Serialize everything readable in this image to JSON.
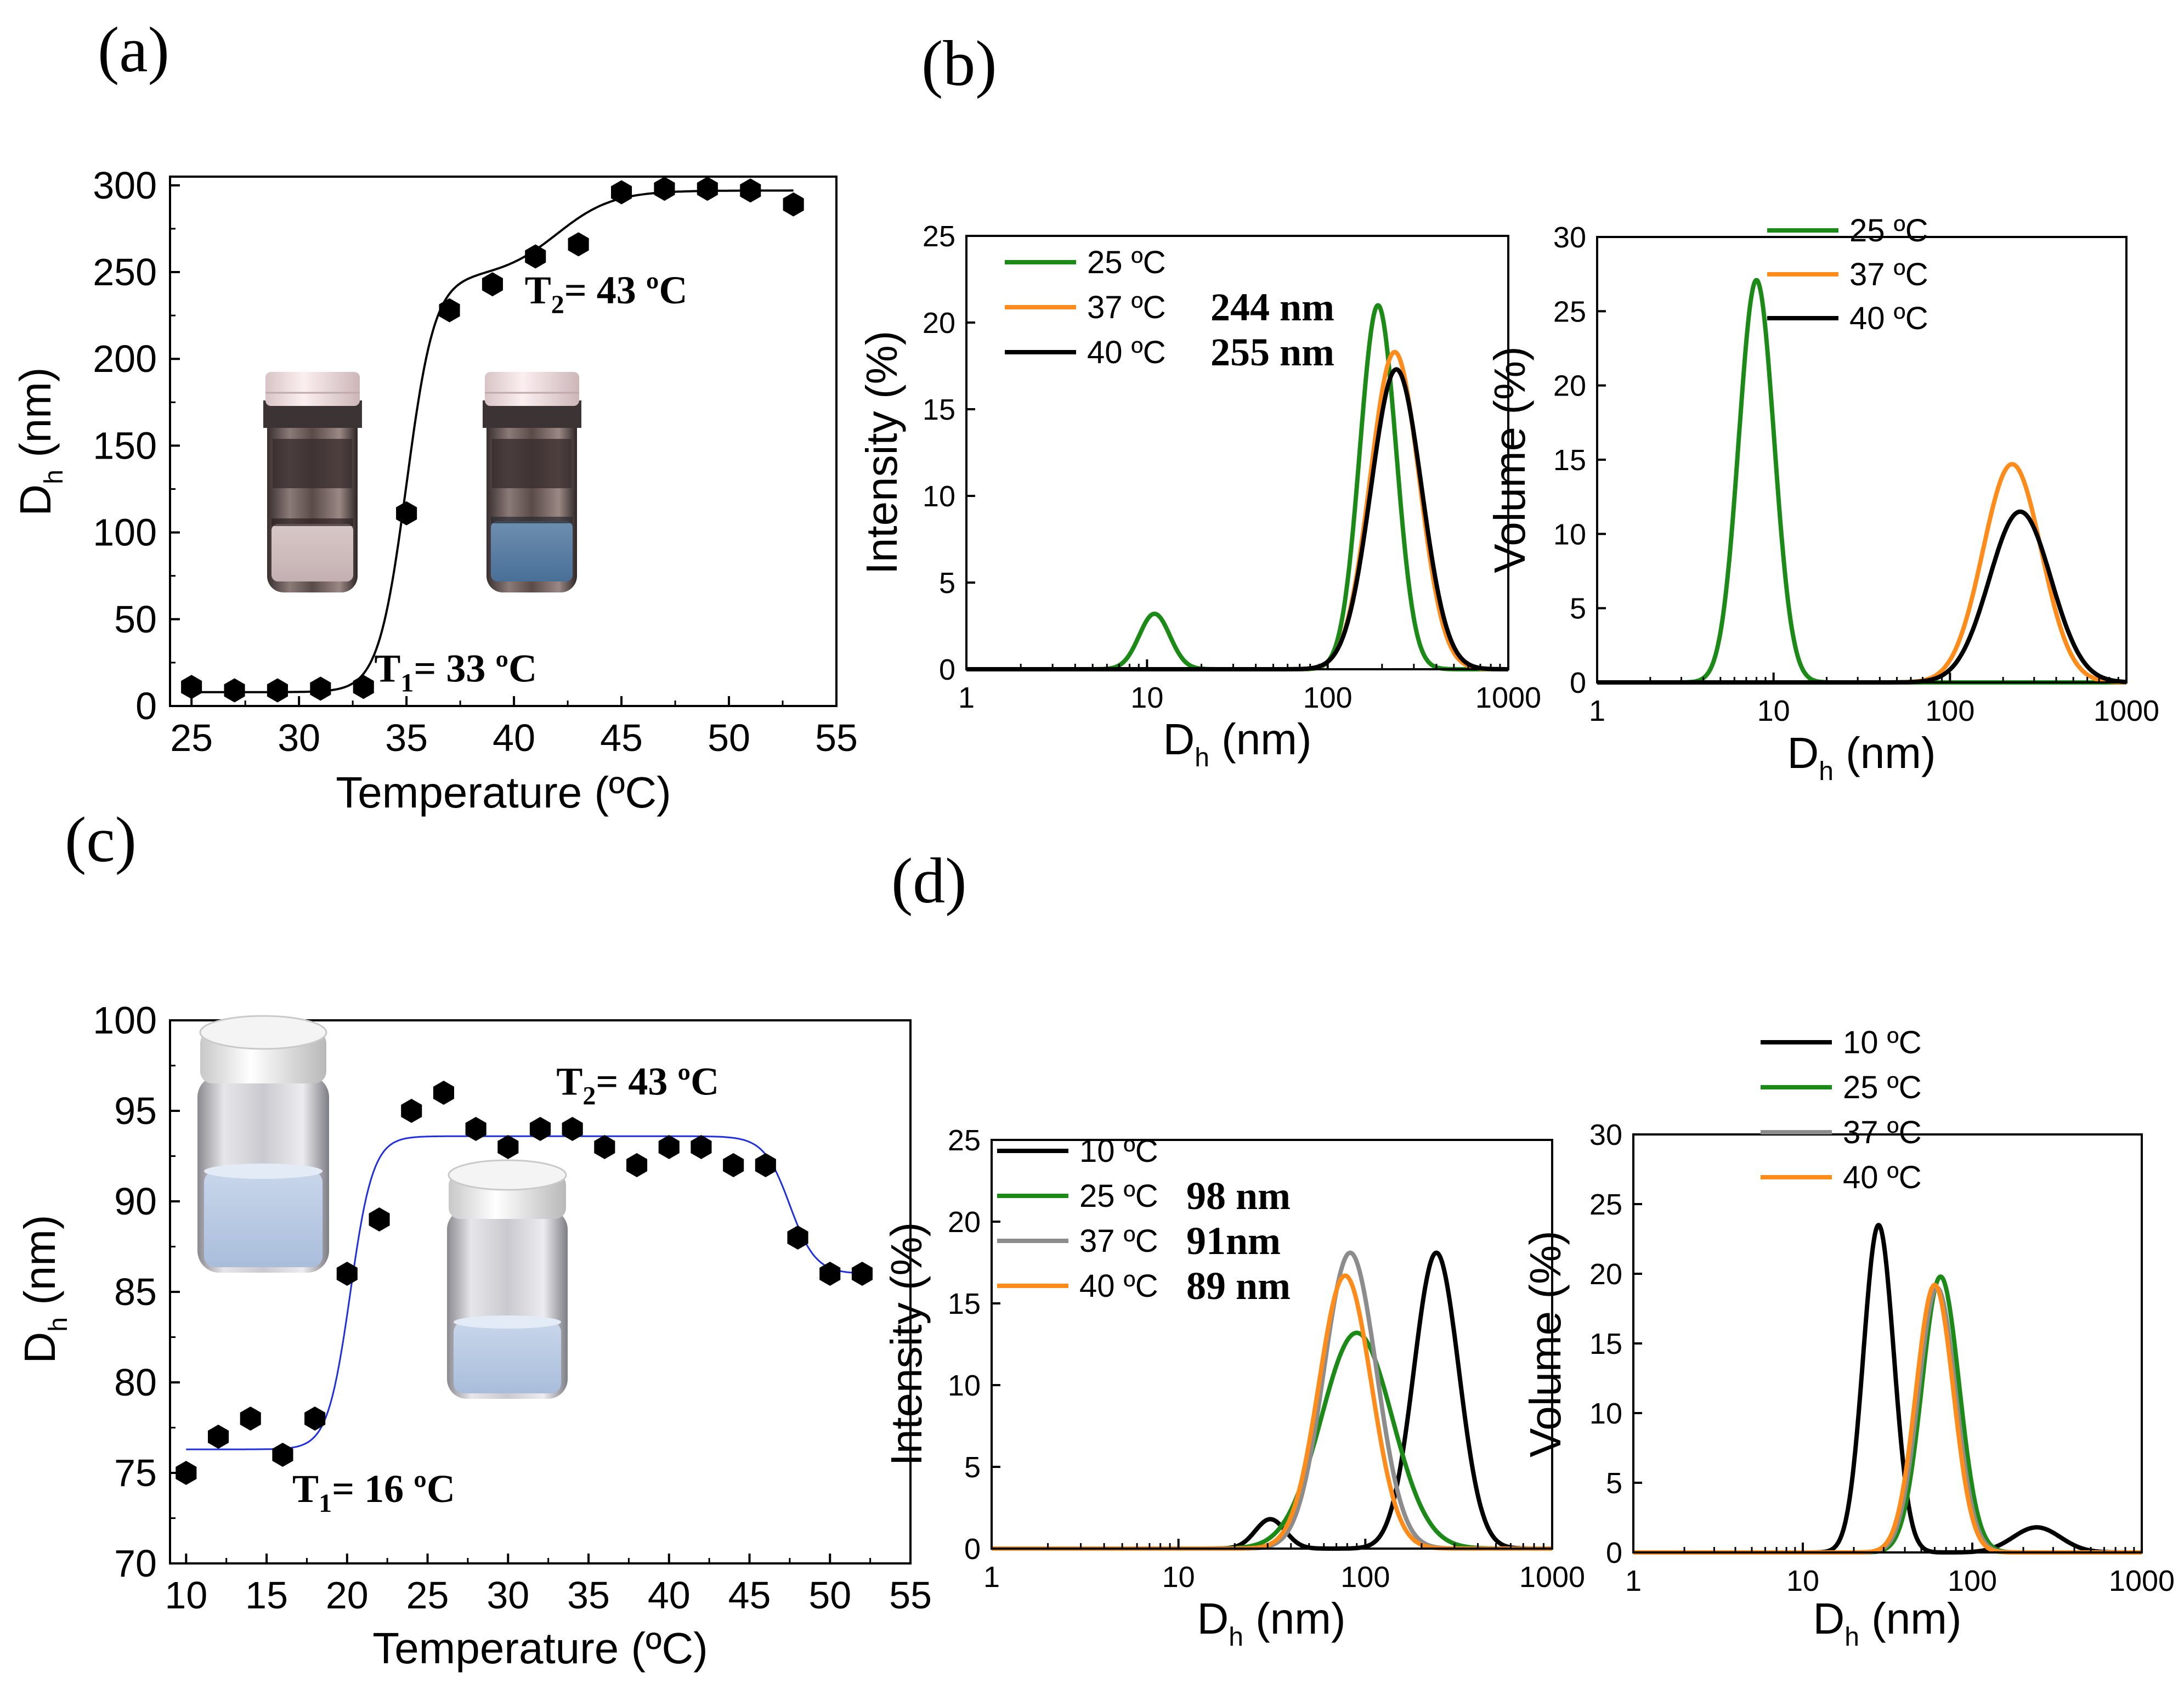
{
  "panels": {
    "a": "(a)",
    "b": "(b)",
    "c": "(c)",
    "d": "(d)"
  },
  "colors": {
    "green": "#1b8a17",
    "orange": "#ff8c1a",
    "black": "#000000",
    "gray": "#8c8c8c",
    "fit_a": "#000000",
    "fit_c": "#1f2fe0"
  },
  "chart_data": [
    {
      "id": "a",
      "type": "scatter",
      "xlabel": "Temperature (ºC)",
      "ylabel_main": "D",
      "ylabel_sub": "h",
      "ylabel_rest": " (nm)",
      "xlim": [
        24,
        55
      ],
      "ylim": [
        0,
        305
      ],
      "xticks": [
        25,
        30,
        35,
        40,
        45,
        50,
        55
      ],
      "yticks": [
        0,
        50,
        100,
        150,
        200,
        250,
        300
      ],
      "x": [
        25,
        27,
        29,
        31,
        33,
        35,
        37,
        39,
        41,
        43,
        45,
        47,
        49,
        51,
        53
      ],
      "y": [
        11,
        9,
        9,
        10,
        11,
        111,
        228,
        243,
        259,
        266,
        296,
        298,
        298,
        297,
        289
      ],
      "fit": {
        "base": 8,
        "mid1": 35,
        "w1": 0.65,
        "plateau": 247,
        "mid2": 42,
        "w2": 1.3,
        "top": 297
      },
      "annotations": [
        {
          "id": "T1",
          "main": "T",
          "sub": "1",
          "rest": "= 33 ºC",
          "x": 33.5,
          "y": 14
        },
        {
          "id": "T2",
          "main": "T",
          "sub": "2",
          "rest": "= 43 ºC",
          "x": 40.5,
          "y": 232
        }
      ]
    },
    {
      "id": "b-intensity",
      "type": "line",
      "xscale": "log",
      "xlabel_main": "D",
      "xlabel_sub": "h",
      "xlabel_rest": " (nm)",
      "ylabel": "Intensity (%)",
      "xlim": [
        1,
        1000
      ],
      "ylim": [
        0,
        25
      ],
      "xticks": [
        1,
        10,
        100,
        1000
      ],
      "yticks": [
        0,
        5,
        10,
        15,
        20,
        25
      ],
      "series": [
        {
          "name": "25 ºC",
          "color": "#1b8a17",
          "peaks": [
            [
              11,
              3.2,
              0.085
            ],
            [
              190,
              21,
              0.1
            ]
          ]
        },
        {
          "name": "37 ºC",
          "color": "#ff8c1a",
          "peaks": [
            [
              235,
              18.3,
              0.135
            ]
          ]
        },
        {
          "name": "40 ºC",
          "color": "#000000",
          "peaks": [
            [
              240,
              17.3,
              0.14
            ]
          ]
        }
      ],
      "legend_notes": [
        "",
        "244 nm",
        "255 nm"
      ]
    },
    {
      "id": "b-volume",
      "type": "line",
      "xscale": "log",
      "xlabel_main": "D",
      "xlabel_sub": "h",
      "xlabel_rest": " (nm)",
      "ylabel": "Volume (%)",
      "xlim": [
        1,
        1000
      ],
      "ylim": [
        0,
        30
      ],
      "xticks": [
        1,
        10,
        100,
        1000
      ],
      "yticks": [
        0,
        5,
        10,
        15,
        20,
        25,
        30
      ],
      "series": [
        {
          "name": "25 ºC",
          "color": "#1b8a17",
          "peaks": [
            [
              8,
              27.1,
              0.1
            ]
          ]
        },
        {
          "name": "37 ºC",
          "color": "#ff8c1a",
          "peaks": [
            [
              225,
              14.7,
              0.165
            ]
          ]
        },
        {
          "name": "40 ºC",
          "color": "#000000",
          "peaks": [
            [
              250,
              11.5,
              0.175
            ]
          ]
        }
      ]
    },
    {
      "id": "c",
      "type": "scatter",
      "xlabel": "Temperature (ºC)",
      "ylabel_main": "D",
      "ylabel_sub": "h",
      "ylabel_rest": " (nm)",
      "xlim": [
        9,
        55
      ],
      "ylim": [
        70,
        100
      ],
      "xticks": [
        10,
        15,
        20,
        25,
        30,
        35,
        40,
        45,
        50,
        55
      ],
      "yticks": [
        70,
        75,
        80,
        85,
        90,
        95,
        100
      ],
      "x": [
        10,
        12,
        14,
        16,
        18,
        20,
        22,
        24,
        26,
        28,
        30,
        32,
        34,
        36,
        38,
        40,
        42,
        44,
        46,
        48,
        50,
        52
      ],
      "y": [
        75,
        77,
        78,
        76,
        78,
        86,
        89,
        95,
        96,
        94,
        93,
        94,
        94,
        93,
        92,
        93,
        93,
        92,
        92,
        88,
        86,
        86
      ],
      "fit": {
        "base": 76.3,
        "mid1": 20.2,
        "w1": 0.7,
        "plateau": 93.6,
        "mid2": 47.5,
        "w2": 0.8,
        "top": 86
      },
      "annotations": [
        {
          "id": "T1",
          "main": "T",
          "sub": "1",
          "rest": "= 16 ºC",
          "x": 16.6,
          "y": 73.4
        },
        {
          "id": "T2",
          "main": "T",
          "sub": "2",
          "rest": "= 43 ºC",
          "x": 33,
          "y": 95.9
        }
      ]
    },
    {
      "id": "d-intensity",
      "type": "line",
      "xscale": "log",
      "xlabel_main": "D",
      "xlabel_sub": "h",
      "xlabel_rest": " (nm)",
      "ylabel": "Intensity (%)",
      "xlim": [
        1,
        1000
      ],
      "ylim": [
        0,
        25
      ],
      "xticks": [
        1,
        10,
        100,
        1000
      ],
      "yticks": [
        0,
        5,
        10,
        15,
        20,
        25
      ],
      "series": [
        {
          "name": "10 ºC",
          "color": "#000000",
          "peaks": [
            [
              31,
              1.8,
              0.08
            ],
            [
              240,
              18.1,
              0.12
            ]
          ]
        },
        {
          "name": "25 ºC",
          "color": "#1b8a17",
          "peaks": [
            [
              90,
              13.2,
              0.19
            ]
          ]
        },
        {
          "name": "37 ºC",
          "color": "#8c8c8c",
          "peaks": [
            [
              83,
              18.1,
              0.14
            ]
          ]
        },
        {
          "name": "40 ºC",
          "color": "#ff8c1a",
          "peaks": [
            [
              78,
              16.7,
              0.14
            ]
          ]
        }
      ],
      "legend_notes": [
        "",
        "98 nm",
        "91nm",
        "89 nm"
      ]
    },
    {
      "id": "d-volume",
      "type": "line",
      "xscale": "log",
      "xlabel_main": "D",
      "xlabel_sub": "h",
      "xlabel_rest": " (nm)",
      "ylabel": "Volume (%)",
      "xlim": [
        1,
        1000
      ],
      "ylim": [
        0,
        30
      ],
      "xticks": [
        1,
        10,
        100,
        1000
      ],
      "yticks": [
        0,
        5,
        10,
        15,
        20,
        25,
        30
      ],
      "series": [
        {
          "name": "10 ºC",
          "color": "#000000",
          "peaks": [
            [
              28,
              23.5,
              0.09
            ],
            [
              240,
              1.8,
              0.14
            ]
          ]
        },
        {
          "name": "25 ºC",
          "color": "#1b8a17",
          "peaks": [
            [
              65,
              19.8,
              0.11
            ]
          ]
        },
        {
          "name": "37 ºC",
          "color": "#8c8c8c",
          "peaks": [
            [
              62,
              19,
              0.11
            ]
          ]
        },
        {
          "name": "40 ºC",
          "color": "#ff8c1a",
          "peaks": [
            [
              60,
              19.2,
              0.11
            ]
          ]
        }
      ]
    }
  ]
}
